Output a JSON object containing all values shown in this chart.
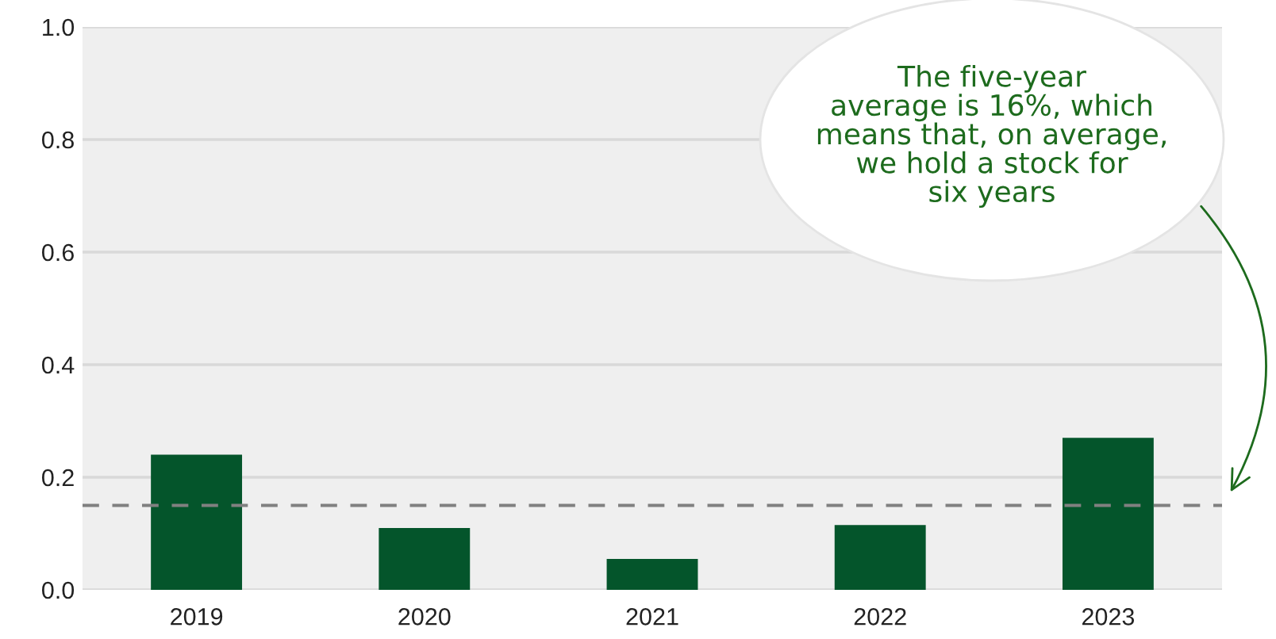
{
  "chart_data": {
    "type": "bar",
    "categories": [
      "2019",
      "2020",
      "2021",
      "2022",
      "2023"
    ],
    "values": [
      0.24,
      0.11,
      0.055,
      0.115,
      0.27
    ],
    "color": "#04552b",
    "ylim": [
      0,
      1.0
    ],
    "yticks": [
      {
        "value": 0,
        "label": "0.0"
      },
      0.2,
      0.4,
      0.6,
      0.8,
      {
        "value": 1.0,
        "label": "1.0"
      }
    ],
    "grid": "y",
    "ref_lines": [
      {
        "axis": "y",
        "value": 0.15,
        "color": "#808080",
        "line_style": "dashed"
      }
    ],
    "annotations": [
      "The five-year\naverage is 16%, which\nmeans that, on average,\nwe hold a stock for\nsix years"
    ]
  }
}
